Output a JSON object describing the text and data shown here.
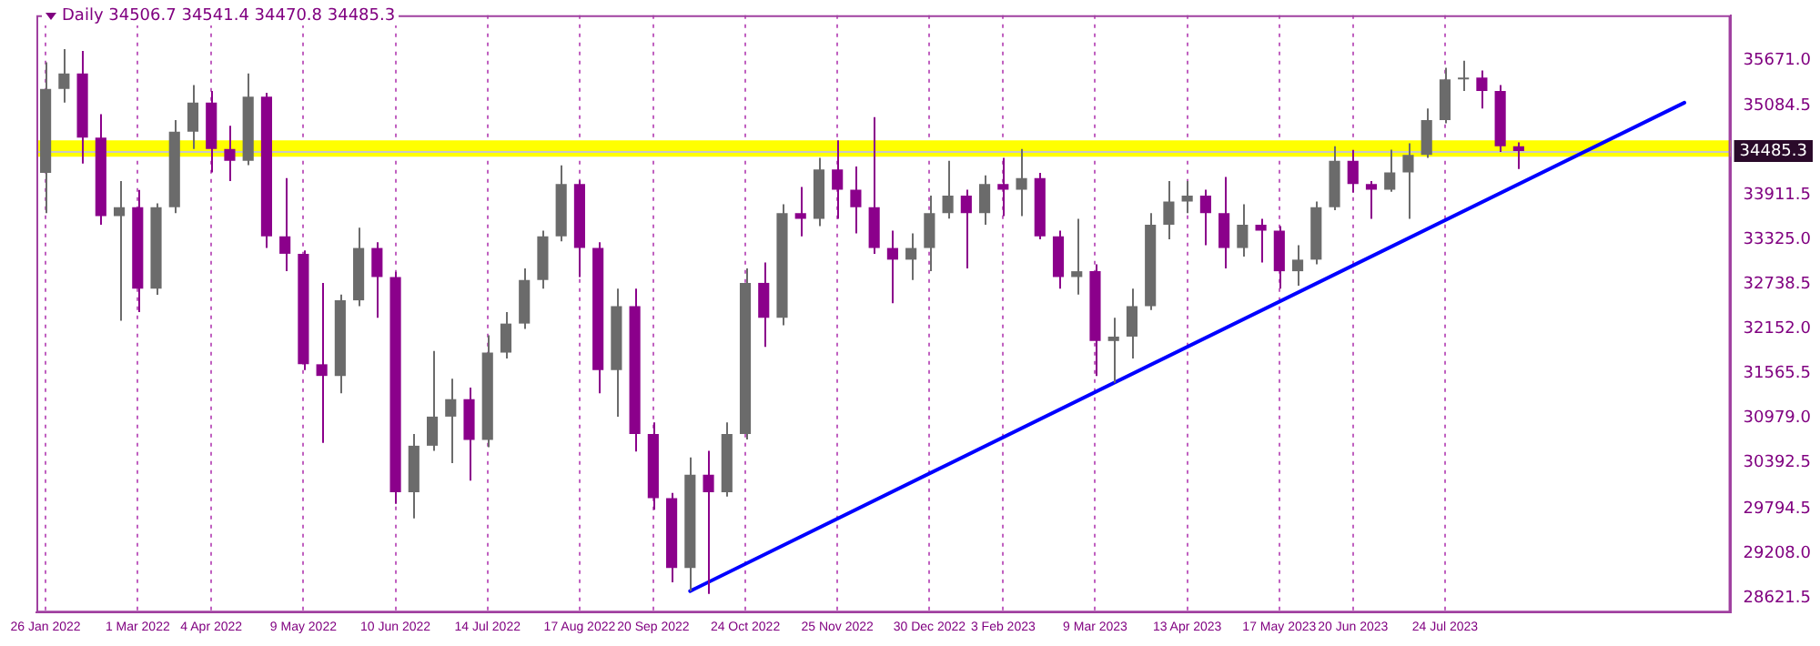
{
  "chart_data": {
    "type": "candlestick",
    "title": "Daily 34506.7 34541.4 34470.8 34485.3",
    "categories": [
      "26 Jan 2022",
      null,
      null,
      null,
      null,
      "1 Mar 2022",
      null,
      null,
      null,
      "4 Apr 2022",
      null,
      null,
      null,
      null,
      "9 May 2022",
      null,
      null,
      null,
      null,
      "10 Jun 2022",
      null,
      null,
      null,
      null,
      "14 Jul 2022",
      null,
      null,
      null,
      null,
      "17 Aug 2022",
      null,
      null,
      null,
      "20 Sep 2022",
      null,
      null,
      null,
      null,
      "24 Oct 2022",
      null,
      null,
      null,
      null,
      "25 Nov 2022",
      null,
      null,
      null,
      null,
      "30 Dec 2022",
      null,
      null,
      null,
      "3 Feb 2023",
      null,
      null,
      null,
      null,
      "9 Mar 2023",
      null,
      null,
      null,
      null,
      "13 Apr 2023",
      null,
      null,
      null,
      null,
      "17 May 2023",
      null,
      null,
      null,
      "20 Jun 2023",
      null,
      null,
      null,
      null,
      "24 Jul 2023",
      null,
      null,
      null,
      null,
      null,
      null,
      null,
      null,
      null,
      null,
      null,
      null,
      null,
      null,
      null
    ],
    "ohlc": [
      [
        34200,
        35650,
        33670,
        35300
      ],
      [
        35300,
        35824,
        35121,
        35503
      ],
      [
        35503,
        35800,
        34320,
        34663
      ],
      [
        34663,
        34969,
        33518,
        33633
      ],
      [
        33633,
        34091,
        32259,
        33747
      ],
      [
        33747,
        33976,
        32373,
        32679
      ],
      [
        32679,
        33800,
        32600,
        33747
      ],
      [
        33747,
        34892,
        33671,
        34740
      ],
      [
        34740,
        35350,
        34511,
        35121
      ],
      [
        35121,
        35274,
        34205,
        34511
      ],
      [
        34511,
        34816,
        34091,
        34358
      ],
      [
        34358,
        35503,
        34300,
        35198
      ],
      [
        35198,
        35250,
        33213,
        33366
      ],
      [
        33366,
        34129,
        32908,
        33137
      ],
      [
        33137,
        33180,
        31610,
        31687
      ],
      [
        31687,
        32755,
        30656,
        31534
      ],
      [
        31534,
        32603,
        31305,
        32526
      ],
      [
        32526,
        33480,
        32450,
        33213
      ],
      [
        33213,
        33289,
        32297,
        32832
      ],
      [
        32832,
        32900,
        29855,
        30007
      ],
      [
        30007,
        30771,
        29664,
        30618
      ],
      [
        30618,
        31862,
        30550,
        31000
      ],
      [
        31000,
        31496,
        30389,
        31229
      ],
      [
        31229,
        31381,
        30160,
        30694
      ],
      [
        30694,
        32068,
        30600,
        31840
      ],
      [
        31840,
        32373,
        31763,
        32221
      ],
      [
        32221,
        32946,
        32150,
        32793
      ],
      [
        32793,
        33442,
        32679,
        33366
      ],
      [
        33366,
        34297,
        33300,
        34053
      ],
      [
        34053,
        34100,
        32832,
        33213
      ],
      [
        33213,
        33289,
        31305,
        31610
      ],
      [
        31610,
        32679,
        30999,
        32450
      ],
      [
        32450,
        32679,
        30542,
        30771
      ],
      [
        30771,
        30923,
        29778,
        29931
      ],
      [
        29931,
        30000,
        28824,
        29015
      ],
      [
        29015,
        30465,
        28710,
        30236
      ],
      [
        30236,
        30550,
        28672,
        30007
      ],
      [
        30007,
        30923,
        29950,
        30771
      ],
      [
        30771,
        32946,
        30700,
        32755
      ],
      [
        32755,
        33022,
        31915,
        32297
      ],
      [
        32297,
        33786,
        32200,
        33671
      ],
      [
        33671,
        34015,
        33366,
        33595
      ],
      [
        33595,
        34396,
        33500,
        34244
      ],
      [
        34244,
        34625,
        33595,
        33977
      ],
      [
        33977,
        34282,
        33404,
        33747
      ],
      [
        33747,
        34930,
        33137,
        33213
      ],
      [
        33213,
        33442,
        32488,
        33060
      ],
      [
        33060,
        33404,
        32794,
        33213
      ],
      [
        33213,
        33900,
        32908,
        33671
      ],
      [
        33671,
        34358,
        33600,
        33900
      ],
      [
        33900,
        33977,
        32946,
        33671
      ],
      [
        33671,
        34167,
        33518,
        34053
      ],
      [
        34053,
        34396,
        33633,
        33977
      ],
      [
        33977,
        34511,
        33633,
        34129
      ],
      [
        34129,
        34200,
        33328,
        33366
      ],
      [
        33366,
        33442,
        32679,
        32832
      ],
      [
        32832,
        33595,
        32603,
        32908
      ],
      [
        32908,
        33000,
        31534,
        31992
      ],
      [
        31992,
        32297,
        31442,
        32050
      ],
      [
        32050,
        32679,
        31763,
        32450
      ],
      [
        32450,
        33671,
        32400,
        33518
      ],
      [
        33518,
        34091,
        33328,
        33824
      ],
      [
        33824,
        34091,
        33671,
        33900
      ],
      [
        33900,
        33977,
        33251,
        33671
      ],
      [
        33671,
        34144,
        32946,
        33213
      ],
      [
        33213,
        33786,
        33099,
        33518
      ],
      [
        33518,
        33595,
        33022,
        33442
      ],
      [
        33442,
        33500,
        32679,
        32908
      ],
      [
        32908,
        33251,
        32717,
        33060
      ],
      [
        33060,
        33824,
        33000,
        33747
      ],
      [
        33747,
        34549,
        33709,
        34358
      ],
      [
        34358,
        34500,
        33938,
        34053
      ],
      [
        34053,
        34091,
        33595,
        33977
      ],
      [
        33977,
        34504,
        33950,
        34205
      ],
      [
        34205,
        34587,
        33595,
        34434
      ],
      [
        34434,
        35045,
        34396,
        34892
      ],
      [
        34892,
        35579,
        34850,
        35427
      ],
      [
        35427,
        35671,
        35274,
        35450
      ],
      [
        35450,
        35541,
        35045,
        35274
      ],
      [
        35274,
        35350,
        34473,
        34549
      ],
      [
        34549,
        34600,
        34251,
        34485.3
      ],
      null,
      null,
      null,
      null,
      null,
      null,
      null,
      null,
      null,
      null,
      null
    ],
    "colors": [
      "#6b6b6b",
      "#6b6b6b",
      "#8b008b",
      "#8b008b",
      "#6b6b6b",
      "#8b008b",
      "#6b6b6b",
      "#6b6b6b",
      "#6b6b6b",
      "#8b008b",
      "#8b008b",
      "#6b6b6b",
      "#8b008b",
      "#8b008b",
      "#8b008b",
      "#8b008b",
      "#6b6b6b",
      "#6b6b6b",
      "#8b008b",
      "#8b008b",
      "#6b6b6b",
      "#6b6b6b",
      "#6b6b6b",
      "#8b008b",
      "#6b6b6b",
      "#6b6b6b",
      "#6b6b6b",
      "#6b6b6b",
      "#6b6b6b",
      "#8b008b",
      "#8b008b",
      "#6b6b6b",
      "#8b008b",
      "#8b008b",
      "#8b008b",
      "#6b6b6b",
      "#8b008b",
      "#6b6b6b",
      "#6b6b6b",
      "#8b008b",
      "#6b6b6b",
      "#8b008b",
      "#6b6b6b",
      "#8b008b",
      "#8b008b",
      "#8b008b",
      "#8b008b",
      "#6b6b6b",
      "#6b6b6b",
      "#6b6b6b",
      "#8b008b",
      "#6b6b6b",
      "#8b008b",
      "#6b6b6b",
      "#8b008b",
      "#8b008b",
      "#6b6b6b",
      "#8b008b",
      "#6b6b6b",
      "#6b6b6b",
      "#6b6b6b",
      "#6b6b6b",
      "#6b6b6b",
      "#8b008b",
      "#8b008b",
      "#6b6b6b",
      "#8b008b",
      "#8b008b",
      "#6b6b6b",
      "#6b6b6b",
      "#6b6b6b",
      "#8b008b",
      "#8b008b",
      "#6b6b6b",
      "#6b6b6b",
      "#6b6b6b",
      "#6b6b6b",
      "#6b6b6b",
      "#8b008b",
      "#8b008b",
      "#8b008b",
      null,
      null,
      null,
      null,
      null,
      null,
      null,
      null,
      null,
      null,
      null
    ],
    "series": [
      {
        "type": "line",
        "color": "#0000ff",
        "values": [
          null,
          null,
          null,
          null,
          null,
          null,
          null,
          null,
          null,
          null,
          null,
          null,
          null,
          null,
          null,
          null,
          null,
          null,
          null,
          null,
          null,
          null,
          null,
          null,
          null,
          null,
          null,
          null,
          null,
          null,
          null,
          null,
          null,
          null,
          null,
          28710,
          null,
          null,
          null,
          null,
          null,
          null,
          null,
          null,
          null,
          null,
          null,
          null,
          null,
          null,
          null,
          null,
          null,
          null,
          null,
          null,
          null,
          null,
          null,
          null,
          null,
          null,
          null,
          null,
          null,
          null,
          null,
          null,
          null,
          null,
          null,
          null,
          null,
          null,
          null,
          null,
          null,
          null,
          null,
          null,
          null,
          null,
          null,
          null,
          null,
          null,
          null,
          null,
          null,
          35120,
          null,
          null
        ]
      }
    ],
    "ylim": [
      28429,
      36267
    ],
    "yticks": [
      {
        "value": 35671,
        "label": "35671.0"
      },
      35084.5,
      33911.5,
      {
        "value": 33325,
        "label": "33325.0"
      },
      32738.5,
      {
        "value": 32152,
        "label": "32152.0"
      },
      31565.5,
      {
        "value": 30979,
        "label": "30979.0"
      },
      30392.5,
      29794.5,
      {
        "value": 29208,
        "label": "29208.0"
      },
      28621.5
    ],
    "ref_lines": [
      {
        "axis": "y",
        "value": 34485.3,
        "label": "34485.3",
        "color": "#c8c8c8"
      }
    ],
    "bands": [
      {
        "axis": "y",
        "from": 34412,
        "to": 34625,
        "color": "#ffff00"
      }
    ],
    "grid": "x"
  }
}
